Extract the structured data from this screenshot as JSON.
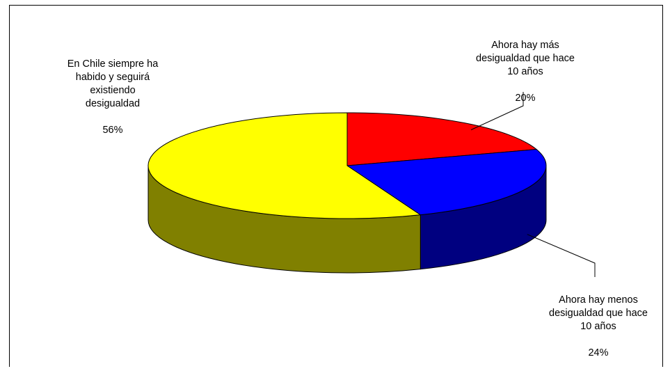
{
  "chart_data": {
    "type": "pie",
    "three_d": true,
    "legend": "none",
    "slices": [
      {
        "label": "Ahora hay más\ndesigualdad que hace\n10 años",
        "value": 20,
        "value_label": "20%",
        "color": "#FF0000",
        "side_color": "#800000"
      },
      {
        "label": "Ahora hay menos\ndesigualdad que hace\n10 años",
        "value": 24,
        "value_label": "24%",
        "color": "#0000FF",
        "side_color": "#000080"
      },
      {
        "label": "En Chile siempre ha\nhabido y seguirá\nexistiendo\ndesigualdad",
        "value": 56,
        "value_label": "56%",
        "color": "#FFFF00",
        "side_color": "#808000"
      }
    ]
  }
}
